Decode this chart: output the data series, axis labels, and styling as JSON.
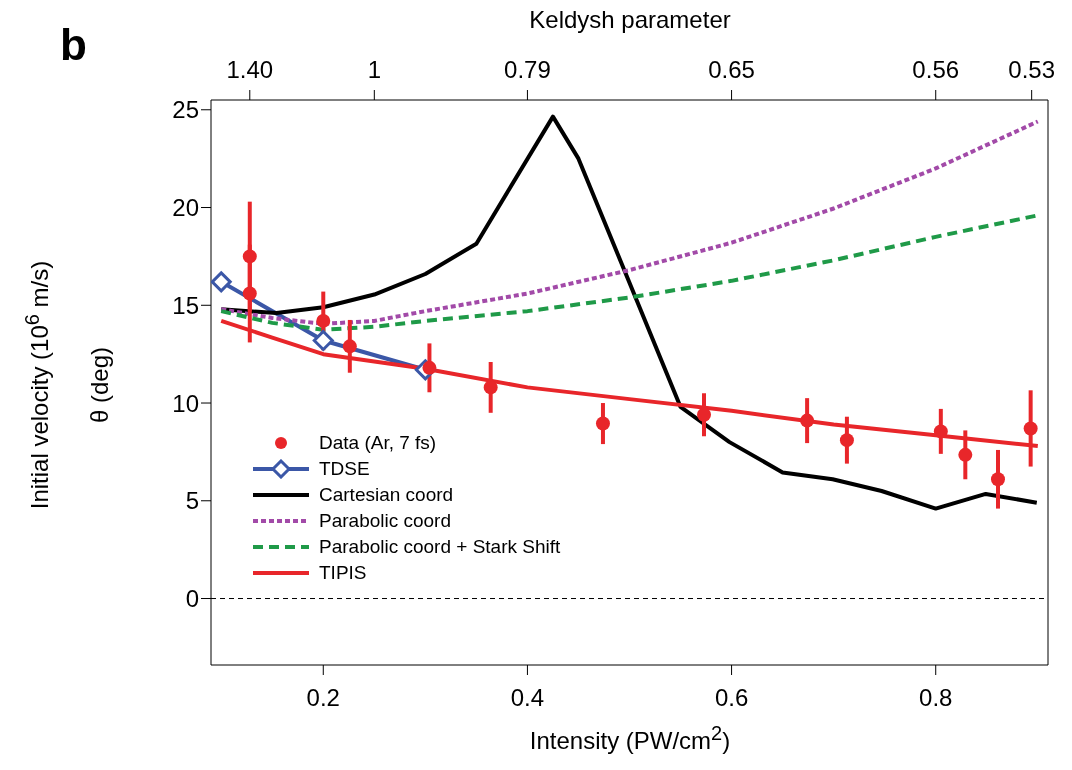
{
  "chart_data": {
    "type": "line",
    "xlabel": "Intensity (PW/cm$^{2}$)",
    "ylabel": "θ (deg)",
    "annotations": [
      "b",
      "Initial velocity (10$^{6}$ m/s)",
      "Keldysh parameter",
      {
        "text": "1.40",
        "x": 0.128
      },
      {
        "text": "1",
        "x": 0.25
      },
      {
        "text": "0.79",
        "x": 0.4
      },
      {
        "text": "0.65",
        "x": 0.6
      },
      {
        "text": "0.56",
        "x": 0.8
      },
      {
        "text": "0.53",
        "x": 0.894
      }
    ],
    "xlim": [
      0.09,
      0.91
    ],
    "xticks": [
      0.2,
      0.4,
      0.6,
      0.8
    ],
    "ylim": [
      -3.4,
      25.5
    ],
    "yticks": [
      0,
      5,
      10,
      15,
      20,
      25
    ],
    "grid": false,
    "legend": "bottom left",
    "ref_lines": [
      {
        "axis": "y",
        "value": 0,
        "color": "#000000",
        "line_style": "dashed"
      }
    ],
    "series": [
      {
        "name": "Data (Ar, 7 fs)",
        "type": "scatter",
        "color": "#e8262a",
        "marker": "circle",
        "x": [
          0.128,
          0.128,
          0.2,
          0.226,
          0.304,
          0.364,
          0.474,
          0.573,
          0.674,
          0.713,
          0.805,
          0.829,
          0.861,
          0.893
        ],
        "values": [
          17.5,
          15.6,
          14.2,
          12.9,
          11.8,
          10.8,
          8.95,
          9.4,
          9.1,
          8.1,
          8.55,
          7.35,
          6.1,
          8.7
        ],
        "errors": [
          2.8,
          2.5,
          1.5,
          1.35,
          1.25,
          1.3,
          1.05,
          1.1,
          1.15,
          1.2,
          1.15,
          1.25,
          1.5,
          1.95
        ]
      },
      {
        "name": "TDSE",
        "color": "#3b57a7",
        "marker": "diamond",
        "line_style": "solid",
        "x": [
          0.1,
          0.2,
          0.3
        ],
        "values": [
          16.2,
          13.2,
          11.7
        ]
      },
      {
        "name": "Cartesian coord",
        "color": "#000000",
        "marker": "none",
        "line_style": "solid",
        "x": [
          0.1,
          0.154,
          0.2,
          0.25,
          0.3,
          0.35,
          0.425,
          0.45,
          0.55,
          0.598,
          0.65,
          0.699,
          0.747,
          0.8,
          0.849,
          0.899
        ],
        "values": [
          14.8,
          14.6,
          14.9,
          15.55,
          16.6,
          18.15,
          24.65,
          22.5,
          9.8,
          8.0,
          6.45,
          6.1,
          5.5,
          4.6,
          5.35,
          4.9
        ]
      },
      {
        "name": "Parabolic coord",
        "color": "#a24aa8",
        "marker": "none",
        "line_style": "dotted",
        "x": [
          0.1,
          0.15,
          0.2,
          0.25,
          0.3,
          0.4,
          0.5,
          0.6,
          0.7,
          0.8,
          0.9
        ],
        "values": [
          14.8,
          14.35,
          14.05,
          14.2,
          14.7,
          15.6,
          16.8,
          18.2,
          19.95,
          22.0,
          24.4
        ]
      },
      {
        "name": "Parabolic coord + Stark Shift",
        "color": "#1f9a48",
        "marker": "none",
        "line_style": "dashed",
        "x": [
          0.1,
          0.15,
          0.2,
          0.25,
          0.3,
          0.4,
          0.5,
          0.6,
          0.7,
          0.8,
          0.9
        ],
        "values": [
          14.7,
          14.1,
          13.75,
          13.9,
          14.2,
          14.7,
          15.4,
          16.25,
          17.3,
          18.5,
          19.6
        ]
      },
      {
        "name": "TIPIS",
        "color": "#e8262a",
        "marker": "none",
        "line_style": "solid",
        "x": [
          0.1,
          0.15,
          0.2,
          0.3,
          0.4,
          0.5,
          0.6,
          0.7,
          0.8,
          0.9
        ],
        "values": [
          14.2,
          13.35,
          12.5,
          11.75,
          10.8,
          10.2,
          9.6,
          8.9,
          8.35,
          7.8
        ]
      }
    ]
  }
}
